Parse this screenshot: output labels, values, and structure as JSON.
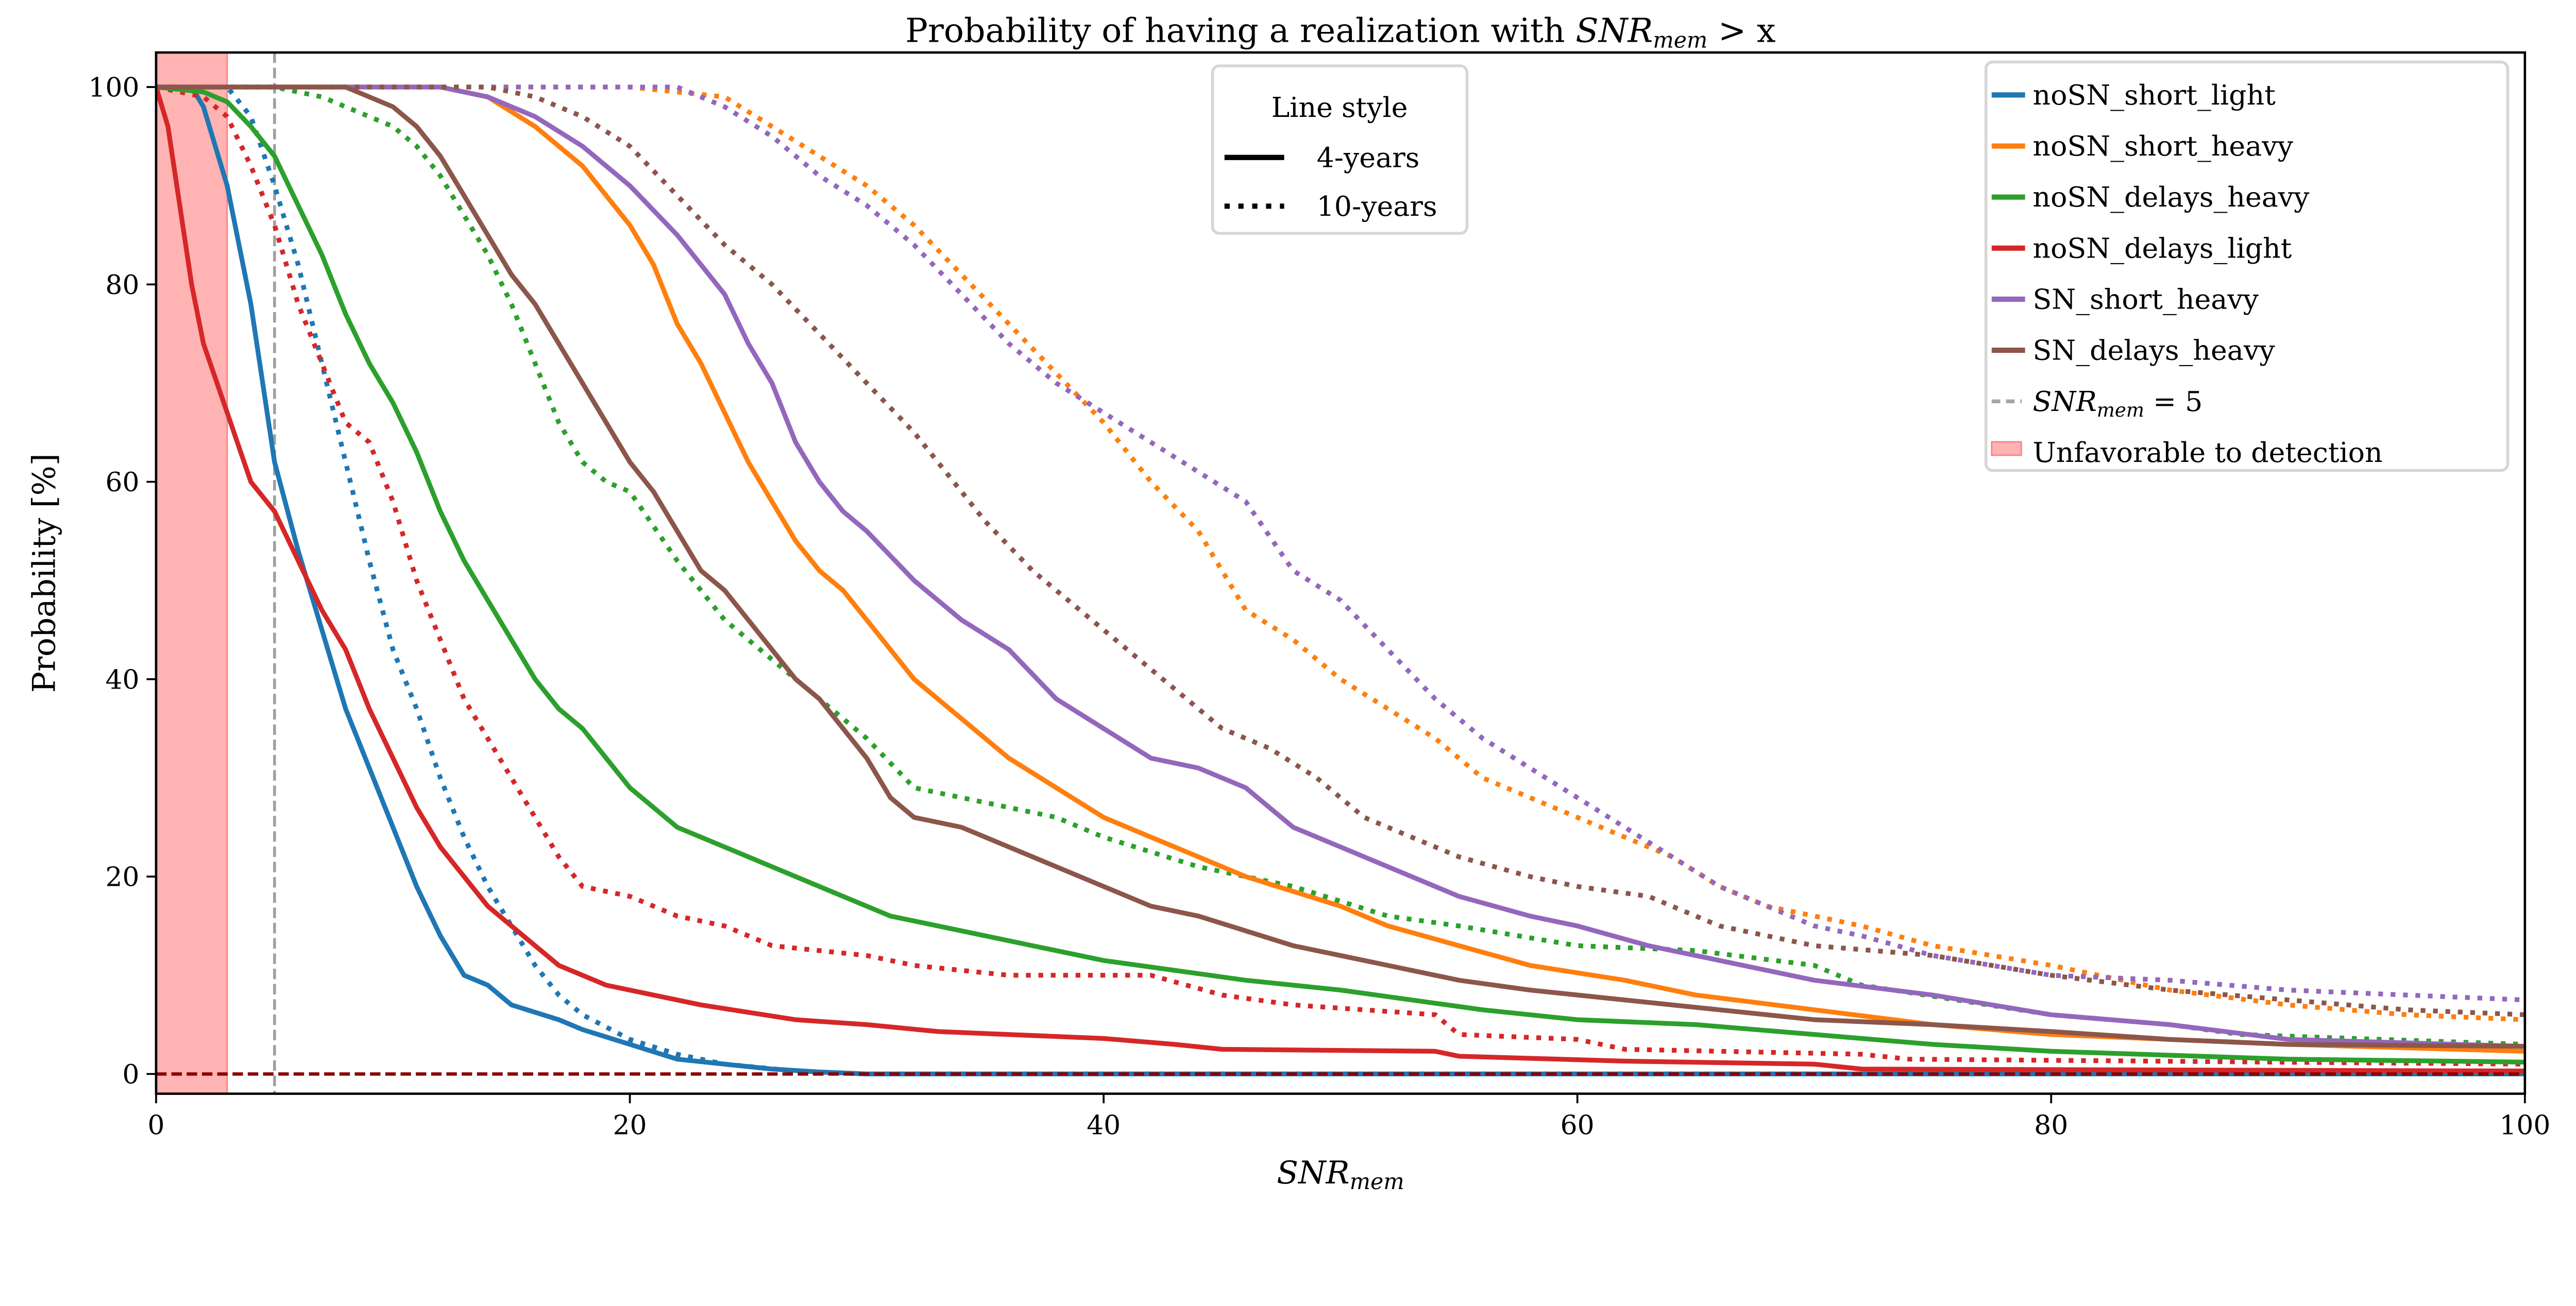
{
  "chart_data": {
    "type": "line",
    "title": "Probability of having a realization with SNR_mem > x",
    "title_parts": {
      "prefix": "Probability of having a realization with ",
      "math": "SNR",
      "sub": "mem",
      "suffix": " > x"
    },
    "xlabel": {
      "math": "SNR",
      "sub": "mem"
    },
    "ylabel": "Probability [%]",
    "xlim": [
      0,
      100
    ],
    "ylim": [
      -2,
      103.5
    ],
    "xticks": [
      0,
      20,
      40,
      60,
      80,
      100
    ],
    "yticks": [
      0,
      20,
      40,
      60,
      80,
      100
    ],
    "grid": false,
    "legend_placement": "top-right",
    "style_legend": {
      "title": "Line style",
      "placement": "top-center",
      "entries": [
        {
          "label": "4-years",
          "style": "solid"
        },
        {
          "label": "10-years",
          "style": "dotted"
        }
      ]
    },
    "reference_lines": {
      "vertical": {
        "x": 5,
        "color": "#a0a0a0",
        "style": "dashed",
        "label_math": "SNR",
        "label_sub": "mem",
        "label_suffix": " = 5"
      },
      "horizontal": {
        "y": 0,
        "color": "#8b0000",
        "style": "dashed"
      }
    },
    "shaded_region": {
      "x": [
        0,
        3
      ],
      "color": "#ff6f6f",
      "label": "Unfavorable to detection"
    },
    "series": [
      {
        "name": "noSN_short_light",
        "color": "#1f77b4",
        "style": "solid",
        "x": [
          0,
          1.5,
          2,
          3,
          4,
          5,
          6,
          7,
          8,
          9,
          10,
          11,
          12,
          13,
          14,
          15,
          17,
          18,
          20,
          22,
          24,
          26,
          28,
          30,
          100
        ],
        "y": [
          100,
          100,
          98,
          90,
          78,
          62,
          53,
          45,
          37,
          31,
          25,
          19,
          14,
          10,
          9,
          7,
          5.5,
          4.5,
          3,
          1.5,
          1,
          0.5,
          0.2,
          0,
          0
        ]
      },
      {
        "name": "noSN_short_light",
        "color": "#1f77b4",
        "style": "dotted",
        "x": [
          0,
          3,
          4,
          5,
          6,
          7,
          8,
          9,
          10,
          11,
          12,
          13,
          14,
          15,
          16,
          17,
          18,
          20,
          22,
          24,
          27,
          30,
          100
        ],
        "y": [
          100,
          100,
          97,
          90,
          82,
          72,
          62,
          52,
          43,
          37,
          30,
          24,
          19,
          15,
          11,
          8,
          6,
          3.5,
          2,
          1,
          0.3,
          0,
          0
        ]
      },
      {
        "name": "noSN_delays_light",
        "color": "#d62728",
        "style": "solid",
        "x": [
          0,
          0.5,
          1,
          1.5,
          2,
          3,
          4,
          5,
          6,
          7,
          8,
          9,
          10,
          11,
          12,
          13,
          14,
          15,
          16,
          17,
          18,
          19,
          21,
          23,
          27,
          30,
          33,
          40,
          43,
          45,
          54,
          55,
          62,
          70,
          72,
          100
        ],
        "y": [
          100,
          96,
          88,
          80,
          74,
          67,
          60,
          57,
          52,
          47,
          43,
          37,
          32,
          27,
          23,
          20,
          17,
          15,
          13,
          11,
          10,
          9,
          8,
          7,
          5.5,
          5,
          4.3,
          3.6,
          3,
          2.5,
          2.3,
          1.8,
          1.3,
          1,
          0.5,
          0.3
        ]
      },
      {
        "name": "noSN_delays_light",
        "color": "#d62728",
        "style": "dotted",
        "x": [
          0,
          2,
          3,
          4,
          5,
          6,
          7,
          8,
          9,
          10,
          11,
          12,
          13,
          14,
          15,
          16,
          17,
          18,
          20,
          22,
          24,
          26,
          30,
          32,
          36,
          42,
          45,
          48,
          54,
          55,
          60,
          62,
          72,
          74,
          100
        ],
        "y": [
          100,
          99,
          97,
          92,
          86,
          78,
          72,
          66,
          64,
          58,
          50,
          44,
          38,
          34,
          30,
          26,
          22,
          19,
          18,
          16,
          15,
          13,
          12,
          11,
          10,
          10,
          8,
          7,
          6,
          4,
          3.5,
          2.5,
          2,
          1.5,
          1
        ]
      },
      {
        "name": "noSN_delays_heavy",
        "color": "#2ca02c",
        "style": "solid",
        "x": [
          0,
          2,
          3,
          4,
          5,
          6,
          7,
          8,
          9,
          10,
          11,
          12,
          13,
          14,
          15,
          16,
          17,
          18,
          19,
          20,
          21,
          22,
          23,
          25,
          27,
          29,
          31,
          34,
          37,
          40,
          43,
          46,
          50,
          53,
          56,
          60,
          65,
          70,
          75,
          80,
          90,
          100
        ],
        "y": [
          100,
          99.5,
          98.5,
          96,
          93,
          88,
          83,
          77,
          72,
          68,
          63,
          57,
          52,
          48,
          44,
          40,
          37,
          35,
          32,
          29,
          27,
          25,
          24,
          22,
          20,
          18,
          16,
          14.5,
          13,
          11.5,
          10.5,
          9.5,
          8.5,
          7.5,
          6.5,
          5.5,
          5,
          4,
          3,
          2.3,
          1.5,
          1.2
        ]
      },
      {
        "name": "noSN_delays_heavy",
        "color": "#2ca02c",
        "style": "dotted",
        "x": [
          0,
          5,
          7,
          9,
          10,
          11,
          12,
          13,
          14,
          15,
          16,
          17,
          18,
          19,
          20,
          22,
          24,
          26,
          28,
          30,
          32,
          34,
          36,
          38,
          40,
          44,
          48,
          52,
          55,
          60,
          65,
          70,
          72,
          80,
          85,
          88,
          100
        ],
        "y": [
          100,
          100,
          99,
          97,
          96,
          94,
          91,
          87,
          83,
          78,
          72,
          66,
          62,
          60,
          59,
          52,
          46,
          42,
          38,
          34,
          29,
          28,
          27,
          26,
          24,
          21,
          19,
          16,
          15,
          13,
          12.5,
          11,
          9,
          6,
          5,
          4,
          3
        ]
      },
      {
        "name": "noSN_short_heavy",
        "color": "#ff7f0e",
        "style": "solid",
        "x": [
          0,
          12,
          14,
          16,
          18,
          20,
          21,
          22,
          23,
          24,
          25,
          26,
          27,
          28,
          29,
          30,
          31,
          32,
          33,
          34,
          35,
          36,
          38,
          40,
          42,
          44,
          46,
          48,
          50,
          52,
          55,
          58,
          62,
          65,
          70,
          75,
          80,
          85,
          90,
          100
        ],
        "y": [
          100,
          100,
          99,
          96,
          92,
          86,
          82,
          76,
          72,
          67,
          62,
          58,
          54,
          51,
          49,
          46,
          43,
          40,
          38,
          36,
          34,
          32,
          29,
          26,
          24,
          22,
          20,
          18.5,
          17,
          15,
          13,
          11,
          9.5,
          8,
          6.5,
          5,
          4,
          3.5,
          3,
          2.3
        ]
      },
      {
        "name": "noSN_short_heavy",
        "color": "#ff7f0e",
        "style": "dotted",
        "x": [
          0,
          20,
          24,
          26,
          28,
          30,
          32,
          34,
          36,
          38,
          40,
          42,
          44,
          46,
          48,
          50,
          52,
          54,
          56,
          58,
          60,
          62,
          64,
          66,
          68,
          70,
          72,
          75,
          80,
          85,
          90,
          95,
          100
        ],
        "y": [
          100,
          100,
          99,
          96,
          93,
          90,
          86,
          81,
          76,
          71,
          66,
          60,
          55,
          47,
          44,
          40,
          37,
          34,
          30,
          28,
          26,
          24,
          22,
          19,
          17,
          16,
          15,
          13,
          11,
          8.5,
          7,
          6,
          5.5
        ]
      },
      {
        "name": "SN_short_heavy",
        "color": "#9467bd",
        "style": "solid",
        "x": [
          0,
          12,
          14,
          16,
          18,
          20,
          22,
          24,
          25,
          26,
          27,
          28,
          29,
          30,
          32,
          34,
          36,
          38,
          40,
          42,
          44,
          46,
          48,
          50,
          52,
          55,
          58,
          60,
          63,
          66,
          70,
          75,
          80,
          85,
          90,
          100
        ],
        "y": [
          100,
          100,
          99,
          97,
          94,
          90,
          85,
          79,
          74,
          70,
          64,
          60,
          57,
          55,
          50,
          46,
          43,
          38,
          35,
          32,
          31,
          29,
          25,
          23,
          21,
          18,
          16,
          15,
          13,
          11.5,
          9.5,
          8,
          6,
          5,
          3.5,
          2.8
        ]
      },
      {
        "name": "SN_short_heavy",
        "color": "#9467bd",
        "style": "dotted",
        "x": [
          0,
          22,
          24,
          26,
          28,
          30,
          32,
          34,
          36,
          38,
          40,
          42,
          44,
          46,
          48,
          50,
          52,
          54,
          56,
          58,
          60,
          62,
          64,
          66,
          68,
          70,
          72,
          75,
          80,
          85,
          90,
          100
        ],
        "y": [
          100,
          100,
          98,
          95,
          91,
          88,
          84,
          79,
          74,
          70,
          67,
          64,
          61,
          58,
          51,
          48,
          43,
          38,
          34,
          31,
          28,
          25,
          22,
          19,
          17,
          15,
          14,
          12,
          10,
          9.5,
          8.5,
          7.5
        ]
      },
      {
        "name": "SN_delays_heavy",
        "color": "#8c564b",
        "style": "solid",
        "x": [
          0,
          8,
          10,
          11,
          12,
          13,
          14,
          15,
          16,
          17,
          18,
          19,
          20,
          21,
          22,
          23,
          24,
          25,
          26,
          27,
          28,
          29,
          30,
          31,
          32,
          34,
          36,
          38,
          40,
          42,
          44,
          46,
          48,
          50,
          52,
          55,
          58,
          62,
          66,
          70,
          75,
          80,
          85,
          90,
          100
        ],
        "y": [
          100,
          100,
          98,
          96,
          93,
          89,
          85,
          81,
          78,
          74,
          70,
          66,
          62,
          59,
          55,
          51,
          49,
          46,
          43,
          40,
          38,
          35,
          32,
          28,
          26,
          25,
          23,
          21,
          19,
          17,
          16,
          14.5,
          13,
          12,
          11,
          9.5,
          8.5,
          7.5,
          6.5,
          5.5,
          5,
          4.3,
          3.5,
          3,
          2.8
        ]
      },
      {
        "name": "SN_delays_heavy",
        "color": "#8c564b",
        "style": "dotted",
        "x": [
          0,
          14,
          16,
          18,
          20,
          22,
          24,
          26,
          28,
          30,
          32,
          33,
          35,
          37,
          39,
          41,
          43,
          45,
          47,
          49,
          51,
          53,
          55,
          58,
          60,
          63,
          66,
          70,
          75,
          80,
          85,
          90,
          95,
          100
        ],
        "y": [
          100,
          100,
          99,
          97,
          94,
          89,
          84,
          80,
          75,
          70,
          65,
          62,
          56,
          51,
          47,
          43,
          39,
          35,
          33,
          30,
          26,
          24,
          22,
          20,
          19,
          18,
          15,
          13,
          12,
          10,
          8.5,
          7.5,
          6.5,
          6
        ]
      }
    ],
    "legend_entries": [
      "noSN_short_light",
      "noSN_short_heavy",
      "noSN_delays_heavy",
      "noSN_delays_light",
      "SN_short_heavy",
      "SN_delays_heavy"
    ]
  }
}
